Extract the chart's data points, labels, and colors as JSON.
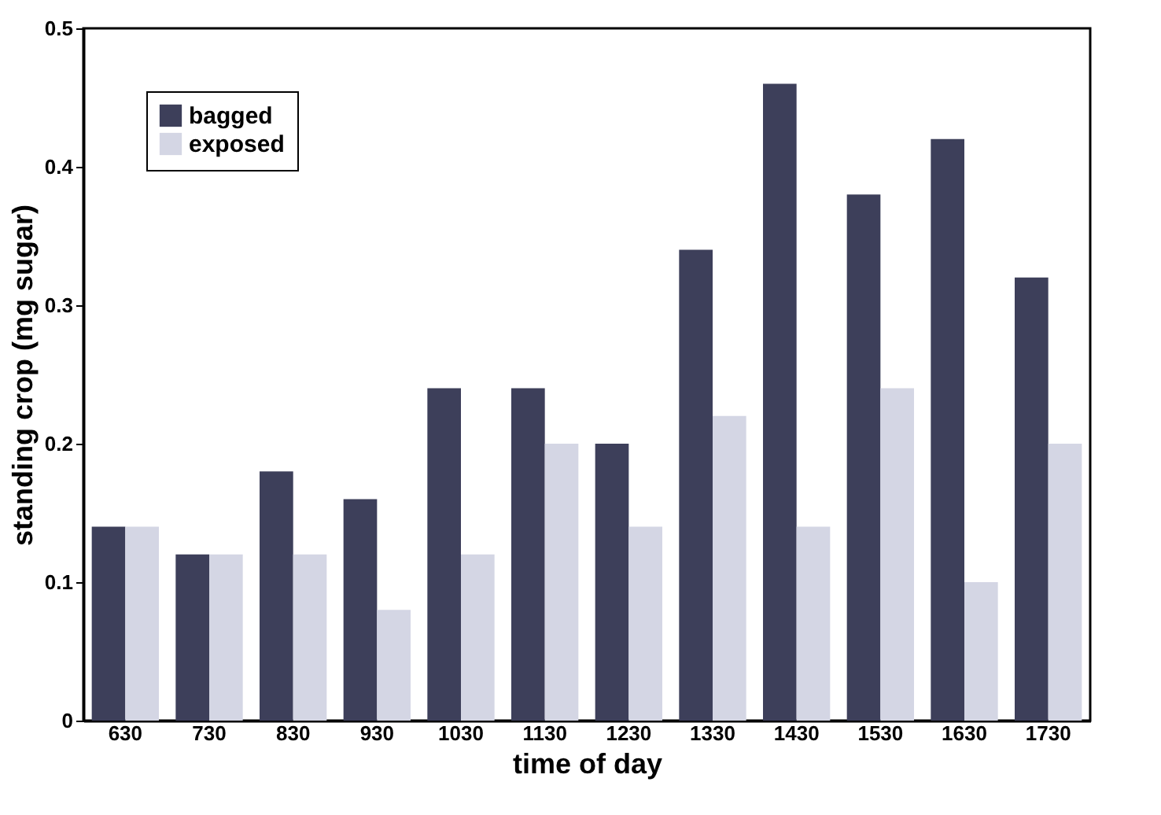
{
  "chart_data": {
    "type": "bar",
    "xlabel": "time of day",
    "ylabel": "standing crop (mg sugar)",
    "categories": [
      "630",
      "730",
      "830",
      "930",
      "1030",
      "1130",
      "1230",
      "1330",
      "1430",
      "1530",
      "1630",
      "1730"
    ],
    "series": [
      {
        "name": "bagged",
        "color": "#3d3f5a",
        "values": [
          0.14,
          0.12,
          0.18,
          0.16,
          0.24,
          0.24,
          0.2,
          0.34,
          0.46,
          0.38,
          0.42,
          0.32
        ]
      },
      {
        "name": "exposed",
        "color": "#d4d6e4",
        "values": [
          0.14,
          0.12,
          0.12,
          0.08,
          0.12,
          0.2,
          0.14,
          0.22,
          0.14,
          0.24,
          0.1,
          0.2
        ]
      }
    ],
    "ylim": [
      0,
      0.5
    ],
    "yticks": [
      0,
      0.1,
      0.2,
      0.3,
      0.4,
      0.5
    ],
    "grid": false,
    "legend": "top left"
  }
}
